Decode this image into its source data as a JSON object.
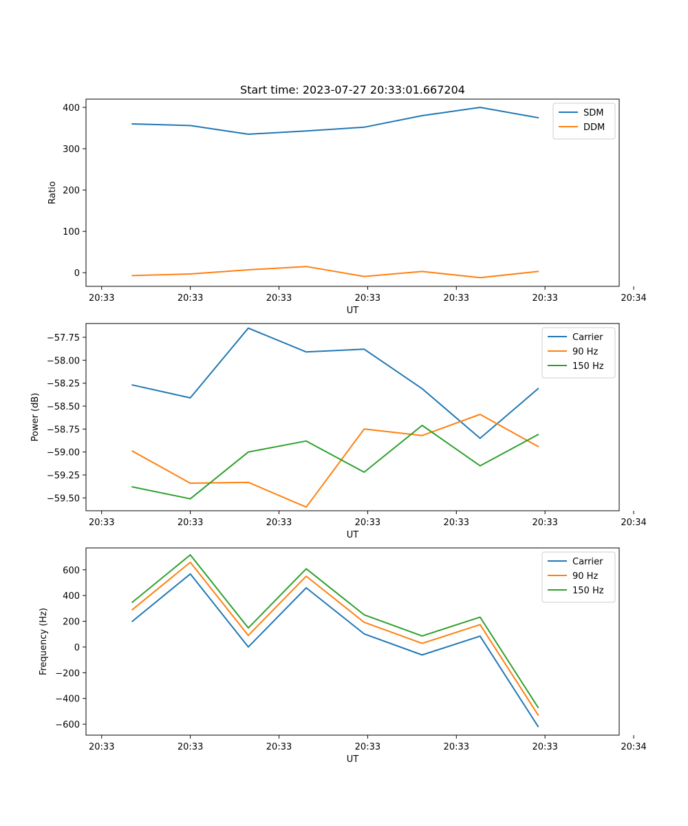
{
  "chart_data": [
    {
      "type": "line",
      "title": "Start time: 2023-07-27 20:33:01.667204",
      "xlabel": "UT",
      "ylabel": "Ratio",
      "x": [
        1,
        2,
        3,
        4,
        5,
        6,
        7,
        8
      ],
      "xlim": [
        0.2,
        9.4
      ],
      "xticks": [
        0.47,
        2,
        3.53,
        5.06,
        6.59,
        8.12,
        9.65
      ],
      "xtick_labels": [
        "20:33",
        "20:33",
        "20:33",
        "20:33",
        "20:33",
        "20:33",
        "20:34"
      ],
      "ylim": [
        -33,
        420
      ],
      "yticks": [
        0,
        100,
        200,
        300,
        400
      ],
      "ytick_labels": [
        "0",
        "100",
        "200",
        "300",
        "400"
      ],
      "legend_position": "top-right",
      "grid": false,
      "series": [
        {
          "name": "SDM",
          "color": "#1f77b4",
          "values": [
            360,
            356,
            335,
            343,
            352,
            380,
            400,
            375
          ]
        },
        {
          "name": "DDM",
          "color": "#ff7f0e",
          "values": [
            -7,
            -3,
            7,
            15,
            -9,
            3,
            -12,
            3
          ]
        }
      ]
    },
    {
      "type": "line",
      "xlabel": "UT",
      "ylabel": "Power (dB)",
      "x": [
        1,
        2,
        3,
        4,
        5,
        6,
        7,
        8
      ],
      "xlim": [
        0.2,
        9.4
      ],
      "xticks": [
        0.47,
        2,
        3.53,
        5.06,
        6.59,
        8.12,
        9.65
      ],
      "xtick_labels": [
        "20:33",
        "20:33",
        "20:33",
        "20:33",
        "20:33",
        "20:33",
        "20:34"
      ],
      "ylim": [
        -59.64,
        -57.6
      ],
      "yticks": [
        -57.75,
        -58.0,
        -58.25,
        -58.5,
        -58.75,
        -59.0,
        -59.25,
        -59.5
      ],
      "ytick_labels": [
        "−57.75",
        "−58.00",
        "−58.25",
        "−58.50",
        "−58.75",
        "−59.00",
        "−59.25",
        "−59.50"
      ],
      "legend_position": "top-right",
      "grid": false,
      "series": [
        {
          "name": "Carrier",
          "color": "#1f77b4",
          "values": [
            -58.27,
            -58.41,
            -57.65,
            -57.91,
            -57.88,
            -58.31,
            -58.85,
            -58.31
          ]
        },
        {
          "name": "90 Hz",
          "color": "#ff7f0e",
          "values": [
            -58.99,
            -59.34,
            -59.33,
            -59.6,
            -58.75,
            -58.82,
            -58.59,
            -58.94
          ]
        },
        {
          "name": "150 Hz",
          "color": "#2ca02c",
          "values": [
            -59.38,
            -59.51,
            -59.0,
            -58.88,
            -59.22,
            -58.71,
            -59.15,
            -58.81
          ]
        }
      ]
    },
    {
      "type": "line",
      "xlabel": "UT",
      "ylabel": "Frequency (Hz)",
      "x": [
        1,
        2,
        3,
        4,
        5,
        6,
        7,
        8
      ],
      "xlim": [
        0.2,
        9.4
      ],
      "xticks": [
        0.47,
        2,
        3.53,
        5.06,
        6.59,
        8.12,
        9.65
      ],
      "xtick_labels": [
        "20:33",
        "20:33",
        "20:33",
        "20:33",
        "20:33",
        "20:33",
        "20:34"
      ],
      "ylim": [
        -685,
        770
      ],
      "yticks": [
        600,
        400,
        200,
        0,
        -200,
        -400,
        -600
      ],
      "ytick_labels": [
        "600",
        "400",
        "200",
        "0",
        "−200",
        "−400",
        "−600"
      ],
      "legend_position": "top-right",
      "grid": false,
      "series": [
        {
          "name": "Carrier",
          "color": "#1f77b4",
          "values": [
            200,
            568,
            0,
            460,
            102,
            -62,
            84,
            -618
          ]
        },
        {
          "name": "90 Hz",
          "color": "#ff7f0e",
          "values": [
            290,
            658,
            90,
            550,
            192,
            28,
            174,
            -528
          ]
        },
        {
          "name": "150 Hz",
          "color": "#2ca02c",
          "values": [
            348,
            716,
            148,
            608,
            250,
            86,
            232,
            -470
          ]
        }
      ]
    }
  ]
}
